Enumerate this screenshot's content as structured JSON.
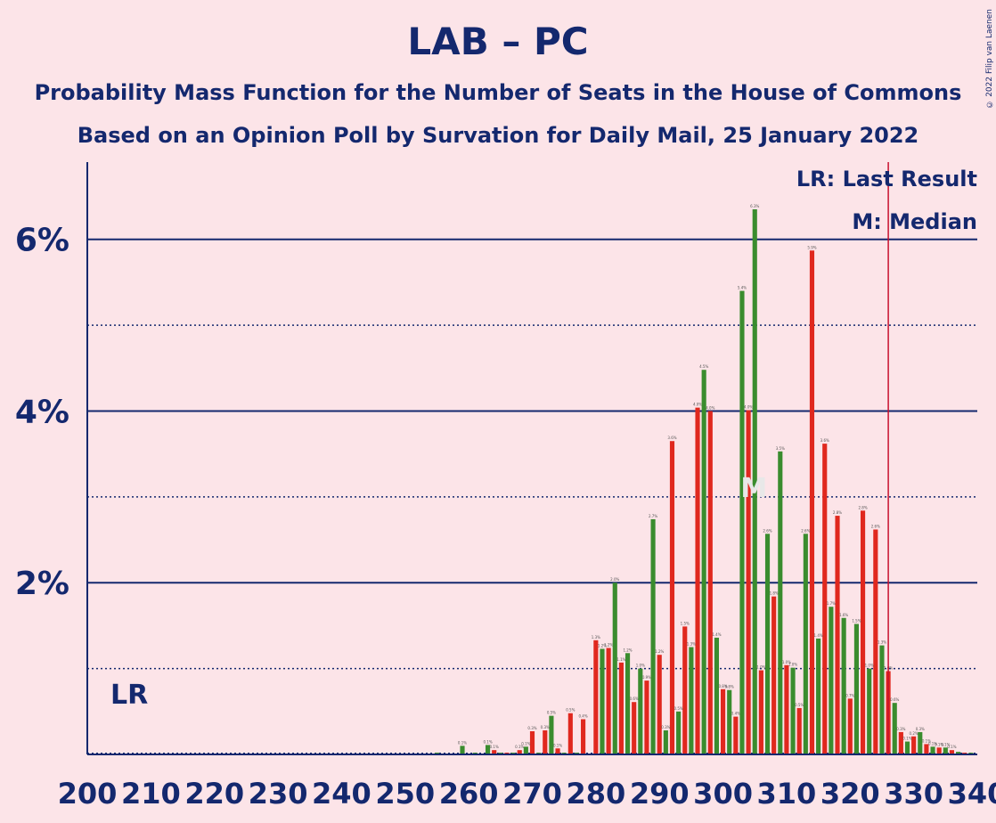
{
  "title": "LAB – PC",
  "subtitle": "Probability Mass Function for the Number of Seats in the House of Commons",
  "subtitle2": "Based on an Opinion Poll by Survation for Daily Mail, 25 January 2022",
  "copyright": "© 2022 Filip van Laenen",
  "legend": {
    "lr": "LR: Last Result",
    "m": "M: Median"
  },
  "lr_marker": "LR",
  "median_marker": "M",
  "colors": {
    "red": "#e0281e",
    "green": "#3a8c2e",
    "navy": "#14286e",
    "lastResult": "#c8102e",
    "background": "#fce4e8"
  },
  "chart_data": {
    "type": "bar",
    "xlim": [
      200,
      340
    ],
    "ylim": [
      0,
      6.9
    ],
    "x_ticks": [
      200,
      210,
      220,
      230,
      240,
      250,
      260,
      270,
      280,
      290,
      300,
      310,
      320,
      330,
      340
    ],
    "y_ticks": [
      {
        "value": 2,
        "label": "2%"
      },
      {
        "value": 4,
        "label": "4%"
      },
      {
        "value": 6,
        "label": "6%"
      }
    ],
    "y_minor": [
      1,
      3,
      5
    ],
    "last_result": 326,
    "median": 305,
    "median_y": 3.1,
    "series": [
      {
        "name": "Red",
        "color": "#e0281e",
        "x": [
          256,
          258,
          260,
          262,
          264,
          266,
          268,
          270,
          272,
          274,
          276,
          278,
          280,
          282,
          284,
          286,
          288,
          290,
          292,
          294,
          296,
          298,
          300,
          302,
          304,
          306,
          308,
          310,
          312,
          314,
          316,
          318,
          320,
          322,
          324,
          326,
          328,
          330,
          332,
          334,
          336,
          338
        ],
        "values": [
          0.01,
          0.01,
          0.01,
          0.01,
          0.05,
          0.02,
          0.05,
          0.27,
          0.28,
          0.07,
          0.48,
          0.41,
          1.33,
          1.24,
          1.07,
          0.61,
          0.86,
          1.16,
          3.65,
          1.49,
          4.04,
          4.0,
          0.76,
          0.44,
          4.01,
          0.98,
          1.84,
          1.04,
          0.54,
          5.87,
          3.62,
          2.78,
          0.65,
          2.84,
          2.62,
          0.97,
          0.26,
          0.21,
          0.12,
          0.08,
          0.05,
          0.02
        ]
      },
      {
        "name": "Green",
        "color": "#3a8c2e",
        "x": [
          255,
          257,
          259,
          261,
          263,
          265,
          267,
          269,
          271,
          273,
          275,
          277,
          279,
          281,
          283,
          285,
          287,
          289,
          291,
          293,
          295,
          297,
          299,
          301,
          303,
          305,
          307,
          309,
          311,
          313,
          315,
          317,
          319,
          321,
          323,
          325,
          327,
          329,
          331,
          333,
          335,
          337,
          339
        ],
        "values": [
          0.02,
          0.01,
          0.1,
          0.02,
          0.11,
          0.02,
          0.02,
          0.09,
          0.02,
          0.45,
          0.02,
          0.02,
          0.01,
          1.23,
          2.0,
          1.18,
          1.0,
          2.74,
          0.28,
          0.5,
          1.25,
          4.48,
          1.36,
          0.75,
          5.4,
          6.35,
          2.57,
          3.53,
          1.01,
          2.57,
          1.35,
          1.72,
          1.59,
          1.52,
          1.0,
          1.27,
          0.6,
          0.15,
          0.26,
          0.09,
          0.08,
          0.03,
          0.02
        ]
      }
    ]
  }
}
